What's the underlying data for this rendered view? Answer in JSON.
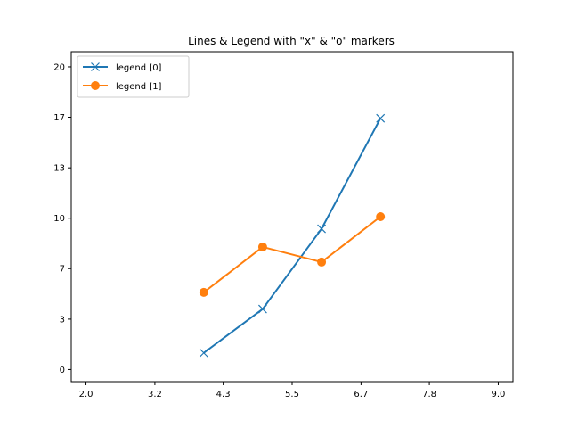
{
  "chart_data": {
    "type": "line",
    "title": "Lines & Legend with \"x\" & \"o\" markers",
    "xlabel": "",
    "ylabel": "",
    "xlim": [
      1.75,
      9.25
    ],
    "ylim": [
      -0.8,
      21.0
    ],
    "x_ticks": [
      2.0,
      3.17,
      4.33,
      5.5,
      6.67,
      7.83,
      9.0
    ],
    "x_tick_labels": [
      "2.0",
      "3.2",
      "4.3",
      "5.5",
      "6.7",
      "7.8",
      "9.0"
    ],
    "y_ticks": [
      0,
      3.33,
      6.67,
      10,
      13.33,
      16.67,
      20
    ],
    "y_tick_labels": [
      "0",
      "3",
      "7",
      "10",
      "13",
      "17",
      "20"
    ],
    "grid": false,
    "legend_position": "top-left",
    "series": [
      {
        "name": "legend [0]",
        "color": "#1f77b4",
        "marker": "x",
        "x": [
          4,
          5,
          6,
          7
        ],
        "y": [
          1.1,
          4.0,
          9.3,
          16.6
        ]
      },
      {
        "name": "legend [1]",
        "color": "#ff7f0e",
        "marker": "o",
        "x": [
          4,
          5,
          6,
          7
        ],
        "y": [
          5.1,
          8.1,
          7.1,
          10.1
        ]
      }
    ]
  }
}
